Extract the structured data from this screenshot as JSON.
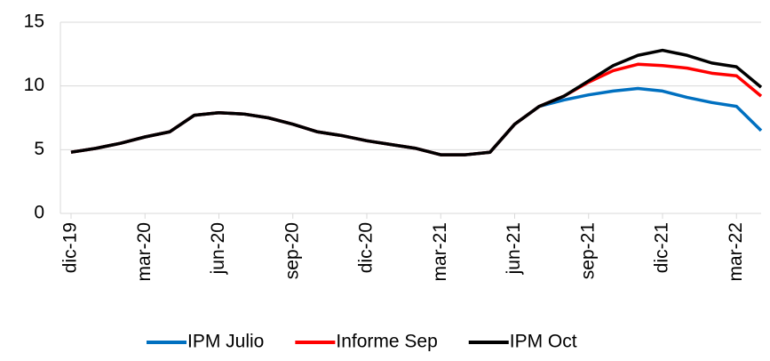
{
  "chart_data": {
    "type": "line",
    "categories": [
      "dic-19",
      null,
      null,
      "mar-20",
      null,
      null,
      "jun-20",
      null,
      null,
      "sep-20",
      null,
      null,
      "dic-20",
      null,
      null,
      "mar-21",
      null,
      null,
      "jun-21",
      null,
      null,
      "sep-21",
      null,
      null,
      "dic-21",
      null,
      null,
      "mar-22",
      null
    ],
    "series": [
      {
        "name": "IPM Julio",
        "color": "#0070c0",
        "values": [
          4.8,
          5.1,
          5.5,
          6.0,
          6.4,
          7.7,
          7.9,
          7.8,
          7.5,
          7.0,
          6.4,
          6.1,
          5.7,
          5.4,
          5.1,
          4.6,
          4.6,
          4.8,
          7.0,
          8.4,
          8.9,
          9.3,
          9.6,
          9.8,
          9.6,
          9.1,
          8.7,
          8.4,
          6.5
        ]
      },
      {
        "name": "Informe Sep",
        "color": "#ff0000",
        "values": [
          4.8,
          5.1,
          5.5,
          6.0,
          6.4,
          7.7,
          7.9,
          7.8,
          7.5,
          7.0,
          6.4,
          6.1,
          5.7,
          5.4,
          5.1,
          4.6,
          4.6,
          4.8,
          7.0,
          8.4,
          9.2,
          10.3,
          11.2,
          11.7,
          11.6,
          11.4,
          11.0,
          10.8,
          9.2
        ]
      },
      {
        "name": "IPM Oct",
        "color": "#000000",
        "values": [
          4.8,
          5.1,
          5.5,
          6.0,
          6.4,
          7.7,
          7.9,
          7.8,
          7.5,
          7.0,
          6.4,
          6.1,
          5.7,
          5.4,
          5.1,
          4.6,
          4.6,
          4.8,
          7.0,
          8.4,
          9.2,
          10.4,
          11.6,
          12.4,
          12.8,
          12.4,
          11.8,
          11.5,
          9.9
        ]
      }
    ],
    "ylim": [
      0,
      15
    ],
    "yticks": [
      0,
      5,
      10,
      15
    ],
    "grid": true,
    "legend": "bottom"
  }
}
